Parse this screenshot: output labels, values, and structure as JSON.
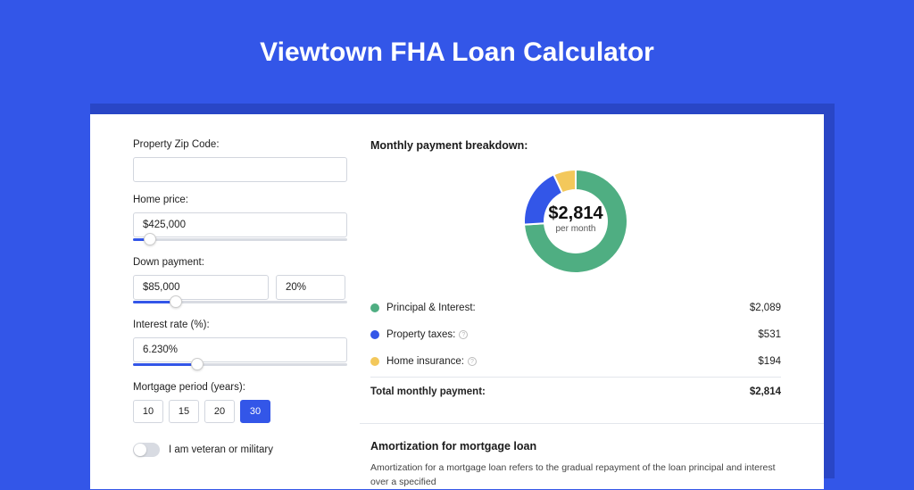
{
  "page": {
    "title": "Viewtown FHA Loan Calculator"
  },
  "colors": {
    "brand": "#3356e8",
    "green": "#4fae82",
    "blue": "#3356e8",
    "yellow": "#f3c85b"
  },
  "form": {
    "zip": {
      "label": "Property Zip Code:",
      "value": "",
      "slider_pct": 0
    },
    "price": {
      "label": "Home price:",
      "value": "$425,000",
      "slider_pct": 8
    },
    "down": {
      "label": "Down payment:",
      "value": "$85,000",
      "pct": "20%",
      "slider_pct": 20
    },
    "rate": {
      "label": "Interest rate (%):",
      "value": "6.230%",
      "slider_pct": 30
    },
    "period": {
      "label": "Mortgage period (years):",
      "options": [
        "10",
        "15",
        "20",
        "30"
      ],
      "selected": "30"
    },
    "veteran": {
      "label": "I am veteran or military",
      "on": false
    }
  },
  "breakdown": {
    "title": "Monthly payment breakdown:",
    "center_amount": "$2,814",
    "center_sub": "per month",
    "items": [
      {
        "label": "Principal & Interest:",
        "value": "$2,089",
        "color": "#4fae82",
        "pct": 74,
        "info": false
      },
      {
        "label": "Property taxes:",
        "value": "$531",
        "color": "#3356e8",
        "pct": 19,
        "info": true
      },
      {
        "label": "Home insurance:",
        "value": "$194",
        "color": "#f3c85b",
        "pct": 7,
        "info": true
      }
    ],
    "total_label": "Total monthly payment:",
    "total_value": "$2,814"
  },
  "amortization": {
    "title": "Amortization for mortgage loan",
    "text": "Amortization for a mortgage loan refers to the gradual repayment of the loan principal and interest over a specified"
  }
}
